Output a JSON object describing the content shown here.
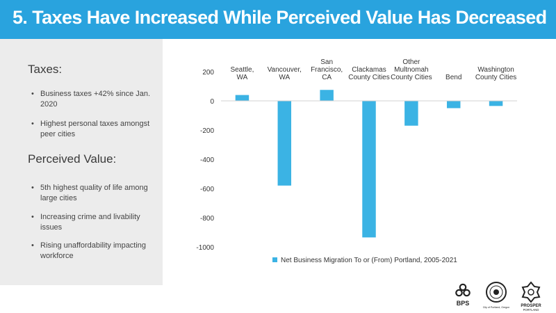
{
  "slide": {
    "title": "5.  Taxes Have Increased While Perceived Value Has Decreased",
    "accent_color": "#29a3de",
    "sidebar_color": "#ececec"
  },
  "sidebar": {
    "taxes_heading": "Taxes:",
    "taxes_bullets": [
      "Business taxes +42% since Jan. 2020",
      "Highest personal taxes amongst peer cities"
    ],
    "value_heading": "Perceived Value:",
    "value_bullets": [
      "5th highest quality of life among large cities",
      "Increasing crime and livability issues",
      "Rising unaffordability impacting workforce"
    ]
  },
  "logos": {
    "bps_label": "BPS",
    "city_label": "City of Portland, Oregon",
    "prosper_label": "PROSPER",
    "prosper_sub": "PORTLAND"
  },
  "chart_data": {
    "type": "bar",
    "categories": [
      [
        "Seattle,",
        "WA"
      ],
      [
        "Vancouver,",
        "WA"
      ],
      [
        "San",
        "Francisco,",
        "CA"
      ],
      [
        "Clackamas",
        "County Cities"
      ],
      [
        "Other",
        "Multnomah",
        "County Cities"
      ],
      [
        "Bend"
      ],
      [
        "Washington",
        "County Cities"
      ]
    ],
    "series": [
      {
        "name": "Net Business Migration To or (From) Portland, 2005-2021",
        "color": "#3bb3e4",
        "values": [
          40,
          -580,
          75,
          -935,
          -170,
          -50,
          -35
        ]
      }
    ],
    "ylim": [
      -1000,
      200
    ],
    "yticks": [
      200,
      0,
      -200,
      -400,
      -600,
      -800,
      -1000
    ],
    "legend_position": "bottom-center",
    "grid": false
  }
}
